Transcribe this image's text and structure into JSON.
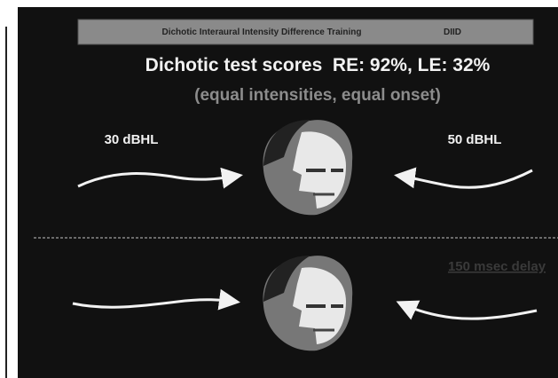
{
  "header": {
    "title": "Dichotic Interaural Intensity Difference Training",
    "abbr": "DIID"
  },
  "title": "Dichotic test scores  RE: 92%, LE: 32%",
  "subtitle": "(equal intensities, equal onset)",
  "left_label": "30 dBHL",
  "right_label": "50 dBHL",
  "delay_label": "150 msec delay"
}
